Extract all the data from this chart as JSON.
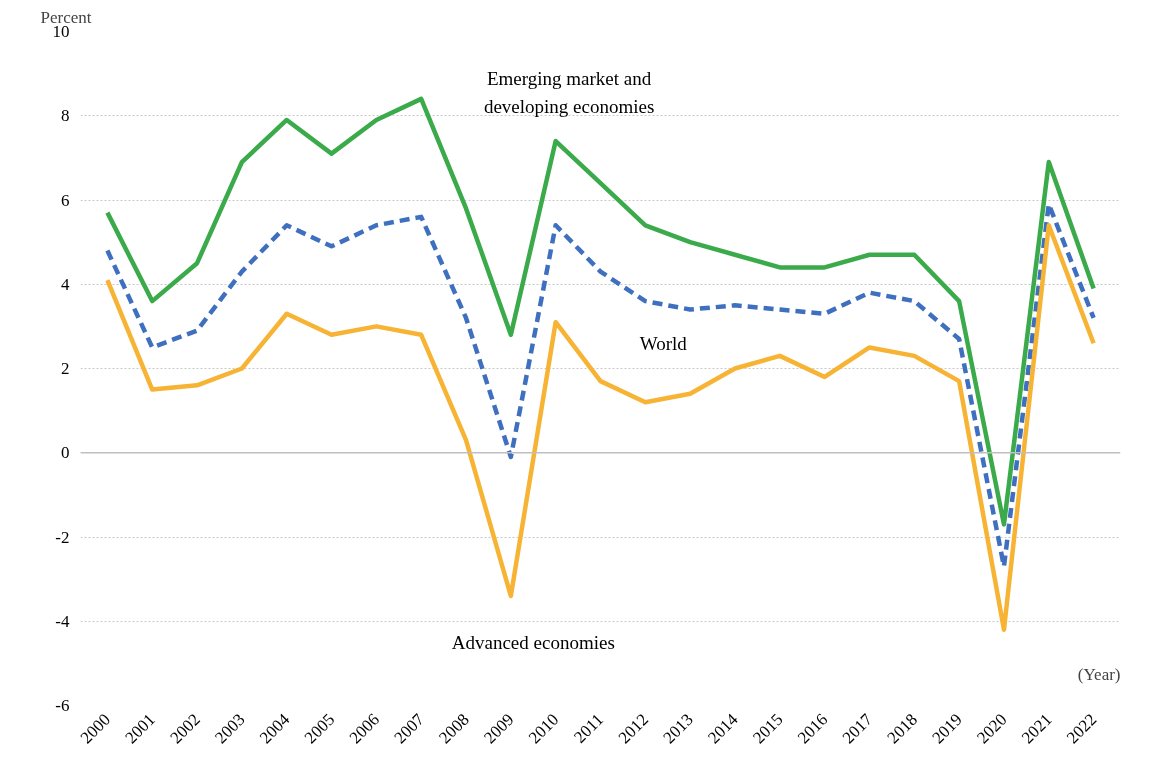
{
  "chart_data": {
    "type": "line",
    "ylabel": "Percent",
    "categories": [
      "2000",
      "2001",
      "2002",
      "2003",
      "2004",
      "2005",
      "2006",
      "2007",
      "2008",
      "2009",
      "2010",
      "2011",
      "2012",
      "2013",
      "2014",
      "2015",
      "2016",
      "2017",
      "2018",
      "2019",
      "2020",
      "2021",
      "2022"
    ],
    "series": [
      {
        "name": "Emerging market and developing economies",
        "color": "#3aaa4a",
        "line_style": "solid",
        "values": [
          5.7,
          3.6,
          4.5,
          6.9,
          7.9,
          7.1,
          7.9,
          8.4,
          5.8,
          2.8,
          7.4,
          6.4,
          5.4,
          5.0,
          4.7,
          4.4,
          4.4,
          4.7,
          4.7,
          3.6,
          -1.7,
          6.9,
          3.9
        ]
      },
      {
        "name": "World",
        "color": "#3f6fbf",
        "line_style": "dashed",
        "values": [
          4.8,
          2.5,
          2.9,
          4.3,
          5.4,
          4.9,
          5.4,
          5.6,
          3.2,
          -0.1,
          5.4,
          4.3,
          3.6,
          3.4,
          3.5,
          3.4,
          3.3,
          3.8,
          3.6,
          2.7,
          -2.7,
          5.9,
          3.2
        ]
      },
      {
        "name": "Advanced economies",
        "color": "#f7b334",
        "line_style": "solid",
        "values": [
          4.1,
          1.5,
          1.6,
          2.0,
          3.3,
          2.8,
          3.0,
          2.8,
          0.3,
          -3.4,
          3.1,
          1.7,
          1.2,
          1.4,
          2.0,
          2.3,
          1.8,
          2.5,
          2.3,
          1.7,
          -4.2,
          5.4,
          2.6
        ]
      }
    ],
    "ylim": [
      -6,
      10
    ],
    "yticks": [
      -6,
      -4,
      -2,
      0,
      2,
      4,
      6,
      8,
      10
    ],
    "grid": "y",
    "ref_lines": [
      {
        "axis": "y",
        "value": 0,
        "color": "#bfbfbf"
      }
    ],
    "annotations": [
      "(Year)"
    ]
  }
}
